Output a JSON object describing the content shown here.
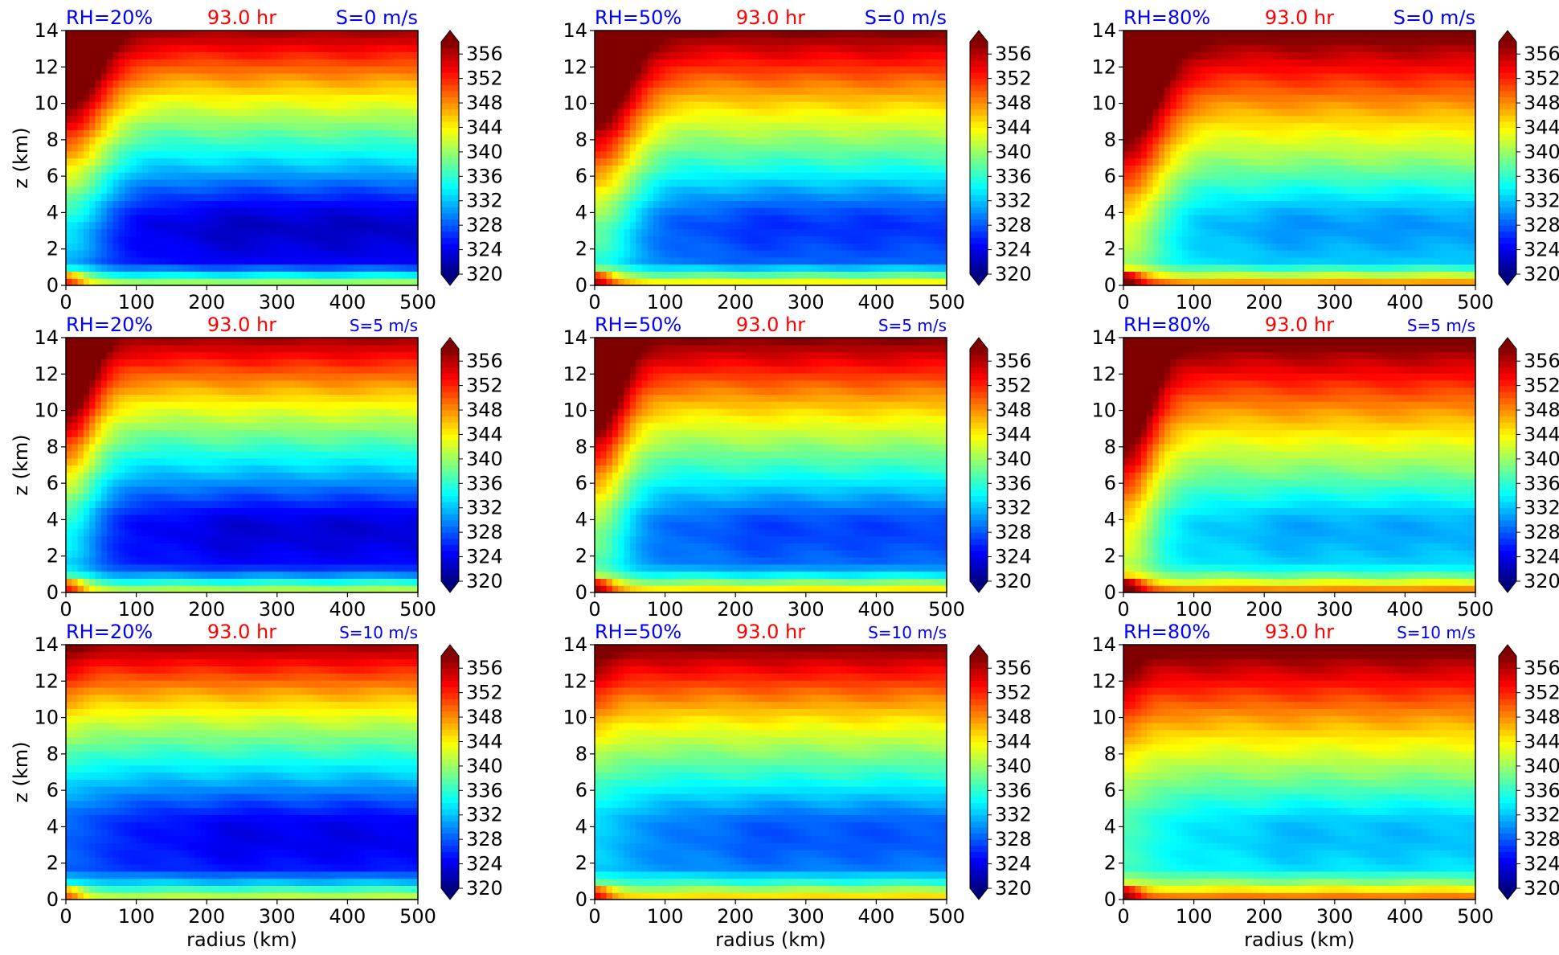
{
  "figure": {
    "time_label": "93.0 hr",
    "xlabel": "radius (km)",
    "ylabel": "z (km)"
  },
  "chart_data": [
    {
      "type": "heatmap",
      "rh_label": "RH=20%",
      "time_label": "93.0 hr",
      "shear_label": "S=0 m/s",
      "rh": 20,
      "shear": 0,
      "xlim": [
        0,
        500
      ],
      "ylim": [
        0,
        14
      ],
      "x_ticks": [
        0,
        100,
        200,
        300,
        400,
        500
      ],
      "y_ticks": [
        0,
        2,
        4,
        6,
        8,
        10,
        12,
        14
      ],
      "colorbar_ticks": [
        356,
        352,
        348,
        344,
        340,
        336,
        332,
        328,
        324,
        320
      ],
      "colorbar_range": [
        320,
        358
      ],
      "colormap": "jet",
      "xlabel": "",
      "ylabel": "z (km)"
    },
    {
      "type": "heatmap",
      "rh_label": "RH=50%",
      "time_label": "93.0 hr",
      "shear_label": "S=0 m/s",
      "rh": 50,
      "shear": 0,
      "xlim": [
        0,
        500
      ],
      "ylim": [
        0,
        14
      ],
      "x_ticks": [
        0,
        100,
        200,
        300,
        400,
        500
      ],
      "y_ticks": [
        0,
        2,
        4,
        6,
        8,
        10,
        12,
        14
      ],
      "colorbar_ticks": [
        356,
        352,
        348,
        344,
        340,
        336,
        332,
        328,
        324,
        320
      ],
      "colorbar_range": [
        320,
        358
      ],
      "colormap": "jet",
      "xlabel": "",
      "ylabel": ""
    },
    {
      "type": "heatmap",
      "rh_label": "RH=80%",
      "time_label": "93.0 hr",
      "shear_label": "S=0 m/s",
      "rh": 80,
      "shear": 0,
      "xlim": [
        0,
        500
      ],
      "ylim": [
        0,
        14
      ],
      "x_ticks": [
        0,
        100,
        200,
        300,
        400,
        500
      ],
      "y_ticks": [
        0,
        2,
        4,
        6,
        8,
        10,
        12,
        14
      ],
      "colorbar_ticks": [
        356,
        352,
        348,
        344,
        340,
        336,
        332,
        328,
        324,
        320
      ],
      "colorbar_range": [
        320,
        358
      ],
      "colormap": "jet",
      "xlabel": "",
      "ylabel": ""
    },
    {
      "type": "heatmap",
      "rh_label": "RH=20%",
      "time_label": "93.0 hr",
      "shear_label": "S=5 m/s",
      "rh": 20,
      "shear": 5,
      "xlim": [
        0,
        500
      ],
      "ylim": [
        0,
        14
      ],
      "x_ticks": [
        0,
        100,
        200,
        300,
        400,
        500
      ],
      "y_ticks": [
        0,
        2,
        4,
        6,
        8,
        10,
        12,
        14
      ],
      "colorbar_ticks": [
        356,
        352,
        348,
        344,
        340,
        336,
        332,
        328,
        324,
        320
      ],
      "colorbar_range": [
        320,
        358
      ],
      "colormap": "jet",
      "xlabel": "",
      "ylabel": "z (km)"
    },
    {
      "type": "heatmap",
      "rh_label": "RH=50%",
      "time_label": "93.0 hr",
      "shear_label": "S=5 m/s",
      "rh": 50,
      "shear": 5,
      "xlim": [
        0,
        500
      ],
      "ylim": [
        0,
        14
      ],
      "x_ticks": [
        0,
        100,
        200,
        300,
        400,
        500
      ],
      "y_ticks": [
        0,
        2,
        4,
        6,
        8,
        10,
        12,
        14
      ],
      "colorbar_ticks": [
        356,
        352,
        348,
        344,
        340,
        336,
        332,
        328,
        324,
        320
      ],
      "colorbar_range": [
        320,
        358
      ],
      "colormap": "jet",
      "xlabel": "",
      "ylabel": ""
    },
    {
      "type": "heatmap",
      "rh_label": "RH=80%",
      "time_label": "93.0 hr",
      "shear_label": "S=5 m/s",
      "rh": 80,
      "shear": 5,
      "xlim": [
        0,
        500
      ],
      "ylim": [
        0,
        14
      ],
      "x_ticks": [
        0,
        100,
        200,
        300,
        400,
        500
      ],
      "y_ticks": [
        0,
        2,
        4,
        6,
        8,
        10,
        12,
        14
      ],
      "colorbar_ticks": [
        356,
        352,
        348,
        344,
        340,
        336,
        332,
        328,
        324,
        320
      ],
      "colorbar_range": [
        320,
        358
      ],
      "colormap": "jet",
      "xlabel": "",
      "ylabel": ""
    },
    {
      "type": "heatmap",
      "rh_label": "RH=20%",
      "time_label": "93.0 hr",
      "shear_label": "S=10 m/s",
      "rh": 20,
      "shear": 10,
      "xlim": [
        0,
        500
      ],
      "ylim": [
        0,
        14
      ],
      "x_ticks": [
        0,
        100,
        200,
        300,
        400,
        500
      ],
      "y_ticks": [
        0,
        2,
        4,
        6,
        8,
        10,
        12,
        14
      ],
      "colorbar_ticks": [
        356,
        352,
        348,
        344,
        340,
        336,
        332,
        328,
        324,
        320
      ],
      "colorbar_range": [
        320,
        358
      ],
      "colormap": "jet",
      "xlabel": "radius (km)",
      "ylabel": "z (km)"
    },
    {
      "type": "heatmap",
      "rh_label": "RH=50%",
      "time_label": "93.0 hr",
      "shear_label": "S=10 m/s",
      "rh": 50,
      "shear": 10,
      "xlim": [
        0,
        500
      ],
      "ylim": [
        0,
        14
      ],
      "x_ticks": [
        0,
        100,
        200,
        300,
        400,
        500
      ],
      "y_ticks": [
        0,
        2,
        4,
        6,
        8,
        10,
        12,
        14
      ],
      "colorbar_ticks": [
        356,
        352,
        348,
        344,
        340,
        336,
        332,
        328,
        324,
        320
      ],
      "colorbar_range": [
        320,
        358
      ],
      "colormap": "jet",
      "xlabel": "radius (km)",
      "ylabel": ""
    },
    {
      "type": "heatmap",
      "rh_label": "RH=80%",
      "time_label": "93.0 hr",
      "shear_label": "S=10 m/s",
      "rh": 80,
      "shear": 10,
      "xlim": [
        0,
        500
      ],
      "ylim": [
        0,
        14
      ],
      "x_ticks": [
        0,
        100,
        200,
        300,
        400,
        500
      ],
      "y_ticks": [
        0,
        2,
        4,
        6,
        8,
        10,
        12,
        14
      ],
      "colorbar_ticks": [
        356,
        352,
        348,
        344,
        340,
        336,
        332,
        328,
        324,
        320
      ],
      "colorbar_range": [
        320,
        358
      ],
      "colormap": "jet",
      "xlabel": "radius (km)",
      "ylabel": ""
    }
  ]
}
